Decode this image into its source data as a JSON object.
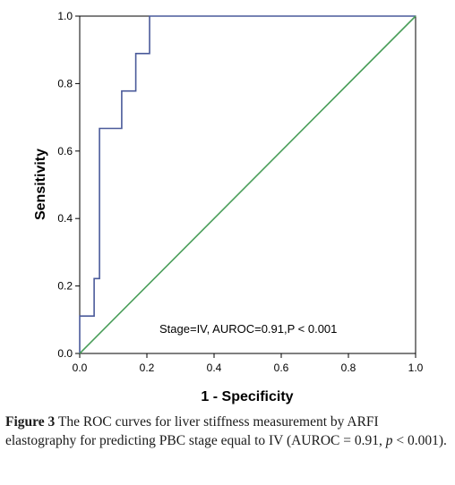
{
  "chart_data": {
    "type": "line",
    "xlabel": "1 - Specificity",
    "ylabel": "Sensitivity",
    "xlim": [
      0.0,
      1.0
    ],
    "ylim": [
      0.0,
      1.0
    ],
    "xticks": [
      "0.0",
      "0.2",
      "0.4",
      "0.6",
      "0.8",
      "1.0"
    ],
    "yticks": [
      "0.0",
      "0.2",
      "0.4",
      "0.6",
      "0.8",
      "1.0"
    ],
    "grid": false,
    "annotation": "Stage=IV, AUROC=0.91,P < 0.001",
    "series": [
      {
        "color": "#4a5a9a",
        "x": [
          0.0,
          0.0,
          0.043,
          0.043,
          0.059,
          0.059,
          0.125,
          0.125,
          0.167,
          0.167,
          0.208,
          0.208,
          1.0
        ],
        "y": [
          0.0,
          0.111,
          0.111,
          0.222,
          0.222,
          0.667,
          0.667,
          0.778,
          0.778,
          0.889,
          0.889,
          1.0,
          1.0
        ]
      },
      {
        "color": "#4a9e5a",
        "x": [
          0.0,
          1.0
        ],
        "y": [
          0.0,
          1.0
        ]
      }
    ]
  },
  "caption": {
    "label": "Figure 3",
    "text": " The ROC curves for liver stiffness measurement by ARFI elastography for predicting PBC stage equal to IV (AUROC = 0.91, ",
    "p_symbol": "p",
    "p_text": " < 0.001)."
  }
}
